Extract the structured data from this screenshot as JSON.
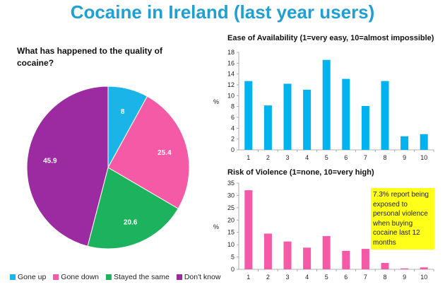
{
  "title": "Cocaine in Ireland (last year users)",
  "chart_data": [
    {
      "type": "pie",
      "title": "What has happened to the quality of cocaine?",
      "categories": [
        "Gone up",
        "Gone down",
        "Stayed the same",
        "Don't know"
      ],
      "values": [
        8,
        25.4,
        20.6,
        45.9
      ],
      "labels": [
        "8",
        "25.4",
        "20.6",
        "45.9"
      ],
      "colors": [
        "#1bb4e8",
        "#f45aa6",
        "#1db35e",
        "#9c2aa0"
      ],
      "legend": "bottom"
    },
    {
      "type": "bar",
      "title": "Ease of Availability (1=very easy, 10=almost impossible)",
      "categories": [
        "1",
        "2",
        "3",
        "4",
        "5",
        "6",
        "7",
        "8",
        "9",
        "10"
      ],
      "values": [
        12.7,
        8.2,
        12.2,
        11.1,
        16.6,
        13.1,
        8.1,
        12.7,
        2.5,
        2.9
      ],
      "ylabel": "%",
      "ylim": [
        0,
        18
      ],
      "yticks": [
        "0",
        "2",
        "4",
        "6",
        "8",
        "10",
        "12",
        "14",
        "16",
        "18"
      ],
      "color": "#00b2ee"
    },
    {
      "type": "bar",
      "title": "Risk of Violence (1=none, 10=very high)",
      "categories": [
        "1",
        "2",
        "3",
        "4",
        "5",
        "6",
        "7",
        "8",
        "9",
        "10"
      ],
      "values": [
        32.1,
        14.5,
        11.3,
        8.8,
        13.5,
        7.5,
        8.3,
        2.6,
        0.4,
        0.8
      ],
      "ylabel": "%",
      "ylim": [
        0,
        35
      ],
      "yticks": [
        "0",
        "5",
        "10",
        "15",
        "20",
        "25",
        "30",
        "35"
      ],
      "color": "#f45aa6",
      "annotation": "7.3% report being exposed to personal violence when buying cocaine last 12 months"
    }
  ]
}
